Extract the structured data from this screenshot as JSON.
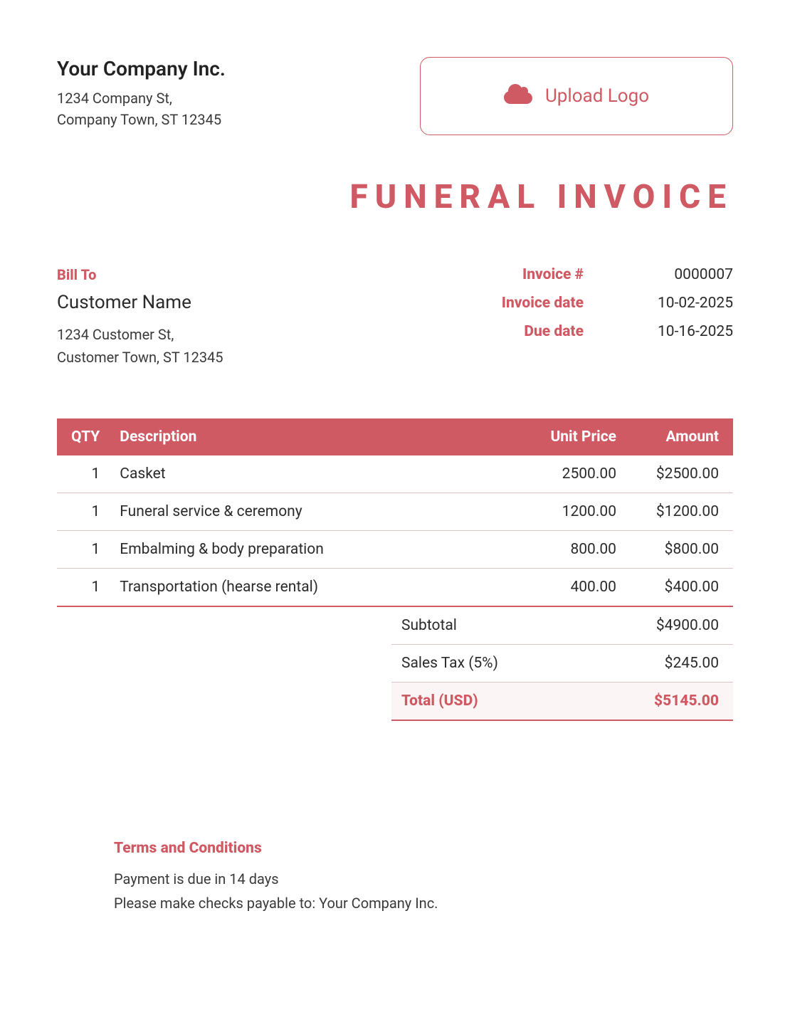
{
  "colors": {
    "accent": "#cf5a63",
    "text": "#2b2b2b",
    "muted": "#3a3a3a",
    "row_border": "#e4c3c6",
    "total_bg": "#fbf6f5",
    "background": "#ffffff"
  },
  "company": {
    "name": "Your Company Inc.",
    "address_line1": "1234 Company St,",
    "address_line2": "Company Town, ST 12345"
  },
  "upload": {
    "label": "Upload Logo",
    "icon": "cloud-upload-icon"
  },
  "document": {
    "title": "FUNERAL INVOICE"
  },
  "bill_to": {
    "label": "Bill To",
    "name": "Customer Name",
    "address_line1": "1234 Customer St,",
    "address_line2": "Customer Town, ST 12345"
  },
  "invoice_meta": {
    "number_label": "Invoice #",
    "number_value": "0000007",
    "date_label": "Invoice date",
    "date_value": "10-02-2025",
    "due_label": "Due date",
    "due_value": "10-16-2025"
  },
  "table": {
    "headers": {
      "qty": "QTY",
      "description": "Description",
      "unit_price": "Unit Price",
      "amount": "Amount"
    },
    "rows": [
      {
        "qty": "1",
        "description": "Casket",
        "unit_price": "2500.00",
        "amount": "$2500.00"
      },
      {
        "qty": "1",
        "description": "Funeral service & ceremony",
        "unit_price": "1200.00",
        "amount": "$1200.00"
      },
      {
        "qty": "1",
        "description": "Embalming & body preparation",
        "unit_price": "800.00",
        "amount": "$800.00"
      },
      {
        "qty": "1",
        "description": "Transportation (hearse rental)",
        "unit_price": "400.00",
        "amount": "$400.00"
      }
    ]
  },
  "totals": {
    "subtotal_label": "Subtotal",
    "subtotal_value": "$4900.00",
    "tax_label": "Sales Tax (5%)",
    "tax_value": "$245.00",
    "total_label": "Total (USD)",
    "total_value": "$5145.00"
  },
  "terms": {
    "title": "Terms and Conditions",
    "line1": "Payment is due in 14 days",
    "line2": "Please make checks payable to: Your Company Inc."
  }
}
